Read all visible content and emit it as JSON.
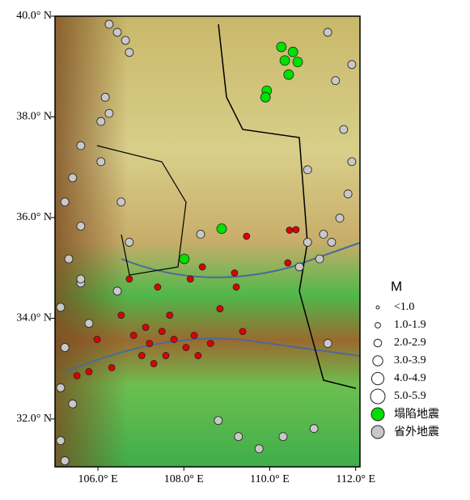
{
  "chart_data": {
    "type": "scatter",
    "xlim": [
      105.0,
      112.1
    ],
    "ylim": [
      31.05,
      40.0
    ],
    "xticks": [
      {
        "value": 106,
        "label": "106.0° E"
      },
      {
        "value": 108,
        "label": "108.0° E"
      },
      {
        "value": 110,
        "label": "110.0° E"
      },
      {
        "value": 112,
        "label": "112.0° E"
      }
    ],
    "yticks": [
      {
        "value": 32,
        "label": "32.0° N"
      },
      {
        "value": 34,
        "label": "34.0° N"
      },
      {
        "value": 36,
        "label": "36.0° N"
      },
      {
        "value": 38,
        "label": "38.0° N"
      },
      {
        "value": 40,
        "label": "40.0° N"
      }
    ],
    "legend": {
      "title": "M",
      "sizes": [
        "<1.0",
        "1.0-1.9",
        "2.0-2.9",
        "3.0-3.9",
        "4.0-4.9",
        "5.0-5.9"
      ]
    },
    "series": [
      {
        "name": "塌陷地震",
        "color": "#00e000",
        "x": [
          110.27,
          110.54,
          110.35,
          110.65,
          110.44,
          109.93,
          109.9,
          108.88,
          108.01
        ],
        "y": [
          39.39,
          39.29,
          39.12,
          39.09,
          38.84,
          38.52,
          38.39,
          35.78,
          35.18
        ]
      },
      {
        "name": "省外地震",
        "color": "#c8c8c8",
        "x": [
          106.26,
          106.45,
          106.64,
          106.73,
          106.17,
          106.07,
          105.6,
          105.41,
          105.23,
          105.6,
          105.32,
          105.6,
          105.13,
          105.79,
          105.23,
          105.13,
          105.41,
          105.13,
          105.23,
          106.45,
          106.73,
          106.54,
          111.35,
          111.53,
          111.72,
          111.91,
          111.82,
          111.63,
          111.25,
          110.88,
          111.44,
          111.16,
          110.69,
          111.91,
          111.03,
          109.27,
          108.8,
          109.75,
          108.39,
          110.88,
          110.31,
          111.35,
          105.6,
          106.07,
          106.26
        ],
        "y": [
          39.84,
          39.68,
          39.52,
          39.28,
          38.39,
          37.91,
          37.43,
          36.79,
          36.31,
          35.83,
          35.18,
          34.7,
          34.22,
          33.9,
          33.42,
          32.62,
          32.3,
          31.57,
          31.17,
          34.54,
          35.51,
          36.31,
          39.68,
          38.72,
          37.75,
          37.11,
          36.47,
          35.99,
          35.67,
          35.51,
          35.51,
          35.18,
          35.02,
          39.04,
          31.81,
          31.65,
          31.97,
          31.41,
          35.67,
          36.95,
          31.65,
          33.5,
          34.78,
          37.11,
          38.07
        ]
      },
      {
        "color": "#e00000",
        "x": [
          109.46,
          110.46,
          110.61,
          110.42,
          109.18,
          109.22,
          108.84,
          107.39,
          106.73,
          107.11,
          107.49,
          107.77,
          108.05,
          108.24,
          108.62,
          107.02,
          107.3,
          106.54,
          106.32,
          105.79,
          105.51,
          105.98,
          108.43,
          108.15,
          109.37,
          107.67,
          106.83,
          107.58,
          108.33,
          107.2
        ],
        "y": [
          35.63,
          35.75,
          35.76,
          35.1,
          34.9,
          34.62,
          34.19,
          34.62,
          34.78,
          33.82,
          33.74,
          33.58,
          33.42,
          33.66,
          33.5,
          33.26,
          33.1,
          34.06,
          33.02,
          32.94,
          32.86,
          33.58,
          35.02,
          34.78,
          33.74,
          34.06,
          33.66,
          33.26,
          33.26,
          33.5
        ]
      }
    ]
  }
}
